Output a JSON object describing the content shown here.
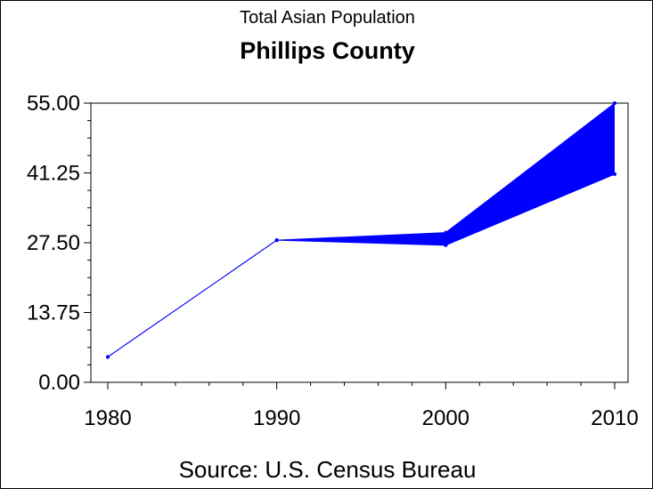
{
  "chart_data": {
    "type": "area",
    "subtitle": "Total Asian Population",
    "title": "Phillips County",
    "source": "Source: U.S. Census Bureau",
    "x": [
      1980,
      1990,
      2000,
      2010
    ],
    "x_tick_labels": [
      "1980",
      "1990",
      "2000",
      "2010"
    ],
    "y_tick_labels": [
      "0.00",
      "13.75",
      "27.50",
      "41.25",
      "55.00"
    ],
    "y_ticks": [
      0,
      13.75,
      27.5,
      41.25,
      55
    ],
    "ylim": [
      0,
      55
    ],
    "xlim": [
      1980,
      2010
    ],
    "series": [
      {
        "values": [
          5,
          28,
          29.5,
          55
        ]
      },
      {
        "values": [
          5,
          28,
          27,
          41
        ]
      }
    ],
    "colors": {
      "line": "#0000ff",
      "fill": "#0000ff",
      "axis": "#000000"
    },
    "grid": false
  }
}
